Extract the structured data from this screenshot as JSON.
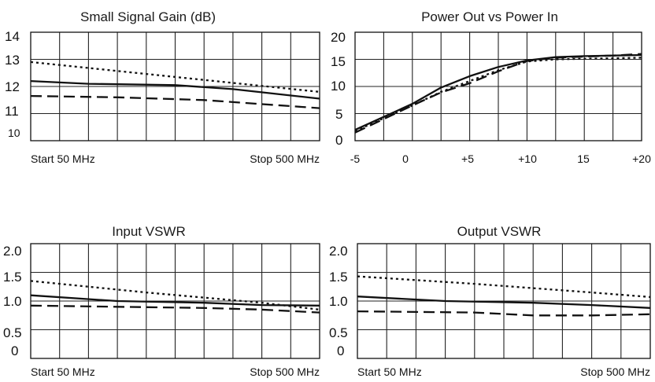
{
  "colors": {
    "line": "#111111",
    "grid": "#222222",
    "background": "#ffffff"
  },
  "chart_data": [
    {
      "type": "line",
      "title": "Small Signal Gain (dB)",
      "ylim": [
        10,
        14
      ],
      "y_ticks": [
        "14",
        "13",
        "12",
        "11",
        "10"
      ],
      "x_labels": {
        "start": "Start 50 MHz",
        "stop": "Stop 500 MHz"
      },
      "grid": true,
      "x": [
        50,
        500
      ],
      "series": [
        {
          "style": "dotted",
          "x": [
            50,
            500
          ],
          "values": [
            12.9,
            11.8
          ]
        },
        {
          "style": "solid",
          "x": [
            50,
            140,
            275,
            365,
            500
          ],
          "values": [
            12.2,
            12.1,
            12.05,
            11.9,
            11.55
          ]
        },
        {
          "style": "dashed",
          "x": [
            50,
            185,
            320,
            500
          ],
          "values": [
            11.65,
            11.6,
            11.5,
            11.2
          ]
        }
      ]
    },
    {
      "type": "line",
      "title": "Power Out vs Power In",
      "xlim": [
        -5,
        20
      ],
      "ylim": [
        0,
        20
      ],
      "y_ticks": [
        "20",
        "15",
        "10",
        "5",
        "0"
      ],
      "x_ticks": [
        "-5",
        "0",
        "+5",
        "+10",
        "15",
        "+20"
      ],
      "grid": true,
      "series": [
        {
          "style": "solid",
          "x": [
            -5,
            0,
            2.5,
            5,
            7.5,
            10,
            12.5,
            15,
            17.5,
            20
          ],
          "values": [
            2,
            6.8,
            9.8,
            11.9,
            13.6,
            14.8,
            15.4,
            15.6,
            15.7,
            15.8
          ]
        },
        {
          "style": "dashed",
          "x": [
            -5,
            0,
            2.5,
            5,
            7.5,
            10,
            12.5,
            15,
            17.5,
            20
          ],
          "values": [
            1.5,
            6.5,
            8.9,
            10.6,
            12.8,
            14.7,
            15.3,
            15.5,
            15.7,
            16
          ]
        },
        {
          "style": "dotted",
          "x": [
            -5,
            0,
            2.5,
            5,
            7.5,
            10,
            12.5,
            15,
            17.5,
            20
          ],
          "values": [
            1.8,
            6.5,
            9,
            11,
            13,
            14.6,
            15,
            15.1,
            15.2,
            15.3
          ]
        }
      ]
    },
    {
      "type": "line",
      "title": "Input VSWR",
      "ylim": [
        0,
        2.0
      ],
      "y_ticks": [
        "2.0",
        "1.5",
        "1.0",
        "0.5",
        "0"
      ],
      "x_labels": {
        "start": "Start 50 MHz",
        "stop": "Stop 500 MHz"
      },
      "grid": true,
      "series": [
        {
          "style": "dotted",
          "x": [
            50,
            230,
            410,
            500
          ],
          "values": [
            1.35,
            1.15,
            0.97,
            0.85
          ]
        },
        {
          "style": "solid",
          "x": [
            50,
            185,
            320,
            410,
            500
          ],
          "values": [
            1.1,
            1.0,
            0.97,
            0.93,
            0.92
          ]
        },
        {
          "style": "dashed",
          "x": [
            50,
            185,
            320,
            410,
            500
          ],
          "values": [
            0.92,
            0.9,
            0.88,
            0.85,
            0.8
          ]
        }
      ]
    },
    {
      "type": "line",
      "title": "Output VSWR",
      "ylim": [
        0,
        2.0
      ],
      "y_ticks": [
        "2.0",
        "1.5",
        "1.0",
        "0.5",
        "0"
      ],
      "x_labels": {
        "start": "Start 50 MHz",
        "stop": "Stop 500 MHz"
      },
      "grid": true,
      "series": [
        {
          "style": "dotted",
          "x": [
            50,
            230,
            410,
            500
          ],
          "values": [
            1.43,
            1.3,
            1.15,
            1.07
          ]
        },
        {
          "style": "solid",
          "x": [
            50,
            185,
            320,
            410,
            500
          ],
          "values": [
            1.08,
            1.0,
            0.97,
            0.93,
            0.88
          ]
        },
        {
          "style": "dashed",
          "x": [
            50,
            230,
            320,
            410,
            500
          ],
          "values": [
            0.82,
            0.8,
            0.75,
            0.75,
            0.77
          ]
        }
      ]
    }
  ]
}
